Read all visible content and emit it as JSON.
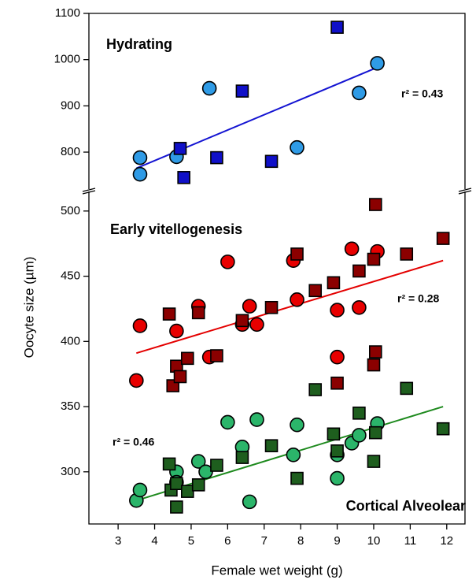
{
  "chart_data": [
    {
      "type": "scatter",
      "ylabel": "Oocyte size (µm)",
      "xlim": [
        2.2,
        12.5
      ],
      "ylim": [
        720,
        1100
      ],
      "yticks": [
        800,
        900,
        1000,
        1100
      ],
      "annotations": [
        {
          "text": "Hydrating",
          "color": "#1414d2"
        },
        {
          "text": "r² = 0.43",
          "color": "#1414d2"
        }
      ],
      "series": [
        {
          "marker": "circle",
          "color": "#2f9be6",
          "x": [
            3.6,
            3.6,
            4.6,
            5.5,
            7.9,
            9.6,
            10.1
          ],
          "values": [
            788,
            752,
            790,
            938,
            810,
            928,
            992
          ]
        },
        {
          "marker": "square",
          "color": "#1010c8",
          "x": [
            4.7,
            4.8,
            5.7,
            6.4,
            7.2,
            9.0
          ],
          "values": [
            808,
            745,
            788,
            932,
            780,
            1070
          ]
        }
      ],
      "fit_lines": [
        {
          "color": "#1414d2",
          "x": [
            3.5,
            10.0
          ],
          "values": [
            765,
            980
          ]
        }
      ]
    },
    {
      "type": "scatter",
      "xlabel": "Female wet weight (g)",
      "xlim": [
        2.2,
        12.5
      ],
      "xticks": [
        3,
        4,
        5,
        6,
        7,
        8,
        9,
        10,
        11,
        12
      ],
      "ylim": [
        260,
        515
      ],
      "yticks": [
        300,
        350,
        400,
        450,
        500
      ],
      "annotations": [
        {
          "text": "Early vitellogenesis",
          "color": "#e40000"
        },
        {
          "text": "r² = 0.28",
          "color": "#e40000"
        },
        {
          "text": "r² = 0.46",
          "color": "#1e8a1e"
        },
        {
          "text": "Cortical Alveolear",
          "color": "#1e6a1e"
        }
      ],
      "series": [
        {
          "marker": "circle",
          "color": "#e80000",
          "x": [
            3.5,
            3.6,
            4.6,
            5.2,
            5.5,
            6.0,
            6.4,
            6.6,
            6.8,
            7.8,
            7.9,
            9.0,
            9.0,
            9.4,
            9.6,
            10.1
          ],
          "values": [
            370,
            412,
            408,
            427,
            388,
            461,
            413,
            427,
            413,
            462,
            432,
            388,
            424,
            471,
            426,
            469
          ]
        },
        {
          "marker": "square",
          "color": "#8b0000",
          "x": [
            4.4,
            4.5,
            4.6,
            4.7,
            4.9,
            5.2,
            5.7,
            6.4,
            7.2,
            7.9,
            8.4,
            8.9,
            9.0,
            9.6,
            10.0,
            10.05,
            10.0,
            10.05,
            10.9,
            11.9
          ],
          "values": [
            421,
            366,
            381,
            373,
            387,
            422,
            389,
            416,
            426,
            467,
            439,
            445,
            368,
            454,
            382,
            392,
            463,
            505,
            467,
            479
          ]
        },
        {
          "marker": "circle",
          "color": "#2bb56a",
          "x": [
            3.5,
            3.6,
            4.6,
            4.6,
            5.2,
            5.4,
            6.0,
            6.4,
            6.6,
            6.8,
            7.8,
            7.9,
            9.0,
            9.0,
            9.4,
            9.6,
            10.1
          ],
          "values": [
            278,
            286,
            300,
            292,
            308,
            300,
            338,
            319,
            277,
            340,
            313,
            336,
            295,
            313,
            322,
            328,
            337
          ]
        },
        {
          "marker": "square",
          "color": "#1e5e1e",
          "x": [
            4.4,
            4.45,
            4.6,
            4.6,
            4.9,
            5.2,
            5.7,
            6.4,
            7.2,
            7.9,
            8.4,
            8.9,
            9.0,
            9.6,
            10.0,
            10.05,
            10.9,
            11.9
          ],
          "values": [
            306,
            286,
            273,
            291,
            285,
            290,
            305,
            311,
            320,
            295,
            363,
            329,
            316,
            345,
            308,
            330,
            364,
            333
          ]
        }
      ],
      "fit_lines": [
        {
          "color": "#e40000",
          "x": [
            3.5,
            11.9
          ],
          "values": [
            391,
            462
          ]
        },
        {
          "color": "#1e8a1e",
          "x": [
            3.5,
            11.9
          ],
          "values": [
            278,
            350
          ]
        }
      ]
    }
  ]
}
